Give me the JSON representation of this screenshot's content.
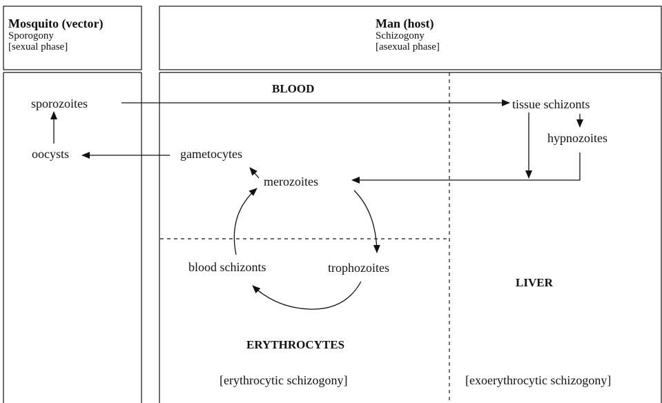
{
  "headers": {
    "mosquito": {
      "title": "Mosquito (vector)",
      "process": "Sporogony",
      "phase": "[sexual phase]"
    },
    "man": {
      "title": "Man (host)",
      "process": "Schizogony",
      "phase": "[asexual phase]"
    }
  },
  "regions": {
    "blood": "BLOOD",
    "liver": "LIVER",
    "erythrocytes": "ERYTHROCYTES"
  },
  "stages": {
    "sporozoites": "sporozoites",
    "oocysts": "oocysts",
    "gametocytes": "gametocytes",
    "merozoites": "merozoites",
    "tissue_schizonts": "tissue schizonts",
    "hypnozoites": "hypnozoites",
    "blood_schizonts": "blood schizonts",
    "trophozoites": "trophozoites"
  },
  "notes": {
    "erythrocytic": "[erythrocytic schizogony]",
    "exoerythrocytic": "[exoerythrocytic schizogony]"
  }
}
